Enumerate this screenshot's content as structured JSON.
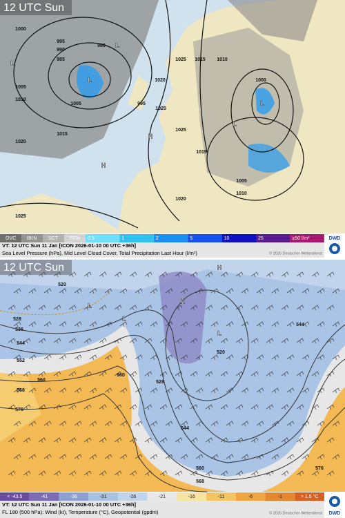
{
  "top_panel": {
    "time_label": "12 UTC Sun",
    "pressure_labels": [
      "1000",
      "995",
      "990",
      "985",
      "980",
      "1005",
      "1010",
      "1015",
      "1020",
      "1025",
      "1020",
      "1025",
      "1025",
      "1015",
      "1010",
      "1025",
      "1015",
      "1020",
      "1010",
      "1005",
      "1000",
      "995",
      "1005"
    ],
    "pressure_centers": [
      "L",
      "L",
      "L",
      "L",
      "H",
      "H",
      "L"
    ],
    "legend": {
      "cloud": [
        "OVC",
        "BKN",
        "SCT",
        "FEW"
      ],
      "precip": [
        "0.5",
        "1",
        "2",
        "5",
        "10",
        "25",
        "≥50 l/m²"
      ]
    },
    "logo": "DWD",
    "valid_time": "VT: 12 UTC Sun  11 Jan [ICON 2026-01-10 00 UTC +36h]",
    "description": "Sea Level Pressure (hPa), Mid Level Cloud Cover, Total Precipitation Last Hour (l/m²)",
    "copyright": "© 2026 Deutscher Wetterdienst"
  },
  "bottom_panel": {
    "time_label": "12 UTC Sun",
    "geopotential_labels": [
      "520",
      "528",
      "536",
      "544",
      "552",
      "560",
      "568",
      "576",
      "560",
      "520",
      "528",
      "544",
      "560",
      "568",
      "576",
      "544"
    ],
    "pressure_centers": [
      "H",
      "H",
      "L",
      "L",
      "L"
    ],
    "legend": [
      "< -43.5",
      "-41",
      "-36",
      "-31",
      "-26",
      "-21",
      "-16",
      "-11",
      "-6",
      "-1",
      "> 1.5 °C"
    ],
    "logo": "DWD",
    "valid_time": "VT: 12 UTC Sun  11 Jan [ICON 2026-01-10 00 UTC +36h]",
    "description": "FL 180 (500 hPa): Wind (kt), Temperature (°C), Geopotential (gpdm)",
    "copyright": "© 2026 Deutscher Wetterdienst"
  }
}
